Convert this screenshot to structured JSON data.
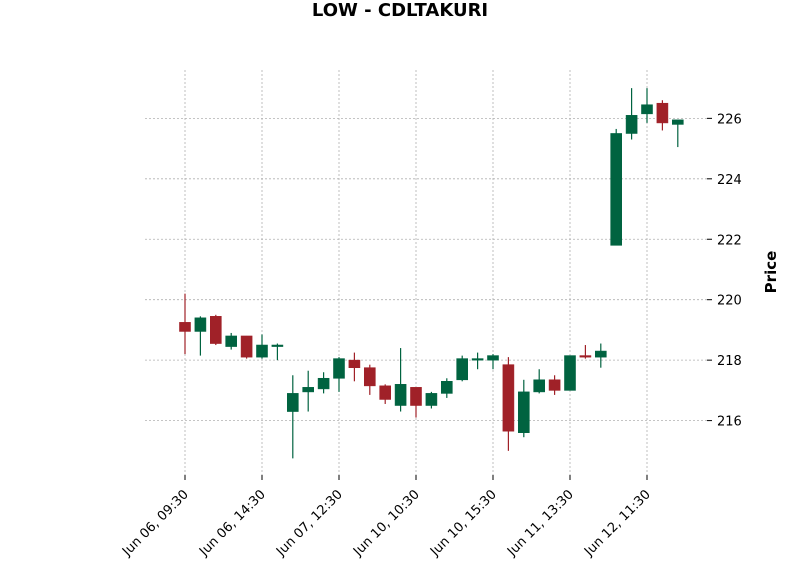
{
  "chart_data": {
    "type": "candlestick",
    "title": "LOW - CDLTAKURI",
    "ylabel": "Price",
    "xlabel": "",
    "ylim": [
      214.2,
      227.6
    ],
    "yticks": [
      216,
      218,
      220,
      222,
      224,
      226
    ],
    "grid": true,
    "xtick_labels": [
      {
        "index": 0,
        "label": "Jun 06, 09:30"
      },
      {
        "index": 5,
        "label": "Jun 06, 14:30"
      },
      {
        "index": 10,
        "label": "Jun 07, 12:30"
      },
      {
        "index": 15,
        "label": "Jun 10, 10:30"
      },
      {
        "index": 20,
        "label": "Jun 10, 15:30"
      },
      {
        "index": 25,
        "label": "Jun 11, 13:30"
      },
      {
        "index": 30,
        "label": "Jun 12, 11:30"
      }
    ],
    "colors": {
      "up": "#006340",
      "down": "#a02128",
      "grid": "#b0b0b0"
    },
    "candles": [
      {
        "open": 219.25,
        "high": 220.2,
        "low": 218.2,
        "close": 218.95
      },
      {
        "open": 218.95,
        "high": 219.45,
        "low": 218.15,
        "close": 219.4
      },
      {
        "open": 219.45,
        "high": 219.5,
        "low": 218.5,
        "close": 218.55
      },
      {
        "open": 218.45,
        "high": 218.9,
        "low": 218.35,
        "close": 218.8
      },
      {
        "open": 218.8,
        "high": 218.8,
        "low": 218.05,
        "close": 218.1
      },
      {
        "open": 218.1,
        "high": 218.85,
        "low": 218.05,
        "close": 218.5
      },
      {
        "open": 218.45,
        "high": 218.55,
        "low": 218.0,
        "close": 218.5
      },
      {
        "open": 216.3,
        "high": 217.5,
        "low": 214.75,
        "close": 216.9
      },
      {
        "open": 216.95,
        "high": 217.65,
        "low": 216.3,
        "close": 217.1
      },
      {
        "open": 217.05,
        "high": 217.6,
        "low": 216.9,
        "close": 217.4
      },
      {
        "open": 217.4,
        "high": 218.1,
        "low": 216.95,
        "close": 218.05
      },
      {
        "open": 218.0,
        "high": 218.25,
        "low": 217.3,
        "close": 217.75
      },
      {
        "open": 217.75,
        "high": 217.85,
        "low": 216.85,
        "close": 217.15
      },
      {
        "open": 217.15,
        "high": 217.2,
        "low": 216.55,
        "close": 216.7
      },
      {
        "open": 216.5,
        "high": 218.4,
        "low": 216.3,
        "close": 217.2
      },
      {
        "open": 217.1,
        "high": 217.1,
        "low": 216.1,
        "close": 216.5
      },
      {
        "open": 216.5,
        "high": 216.95,
        "low": 216.4,
        "close": 216.9
      },
      {
        "open": 216.9,
        "high": 217.4,
        "low": 216.75,
        "close": 217.3
      },
      {
        "open": 217.35,
        "high": 218.15,
        "low": 217.3,
        "close": 218.05
      },
      {
        "open": 218.05,
        "high": 218.25,
        "low": 217.7,
        "close": 218.05
      },
      {
        "open": 218.0,
        "high": 218.2,
        "low": 217.7,
        "close": 218.15
      },
      {
        "open": 217.85,
        "high": 218.1,
        "low": 215.0,
        "close": 215.65
      },
      {
        "open": 215.6,
        "high": 217.35,
        "low": 215.45,
        "close": 216.95
      },
      {
        "open": 216.95,
        "high": 217.7,
        "low": 216.9,
        "close": 217.35
      },
      {
        "open": 217.35,
        "high": 217.5,
        "low": 216.85,
        "close": 217.0
      },
      {
        "open": 217.0,
        "high": 218.15,
        "low": 217.0,
        "close": 218.15
      },
      {
        "open": 218.15,
        "high": 218.5,
        "low": 218.05,
        "close": 218.1
      },
      {
        "open": 218.1,
        "high": 218.55,
        "low": 217.75,
        "close": 218.3
      },
      {
        "open": 221.8,
        "high": 225.65,
        "low": 221.8,
        "close": 225.5
      },
      {
        "open": 225.5,
        "high": 227.0,
        "low": 225.3,
        "close": 226.1
      },
      {
        "open": 226.15,
        "high": 227.0,
        "low": 225.85,
        "close": 226.45
      },
      {
        "open": 226.5,
        "high": 226.6,
        "low": 225.6,
        "close": 225.85
      },
      {
        "open": 225.8,
        "high": 225.95,
        "low": 225.05,
        "close": 225.95
      }
    ]
  }
}
